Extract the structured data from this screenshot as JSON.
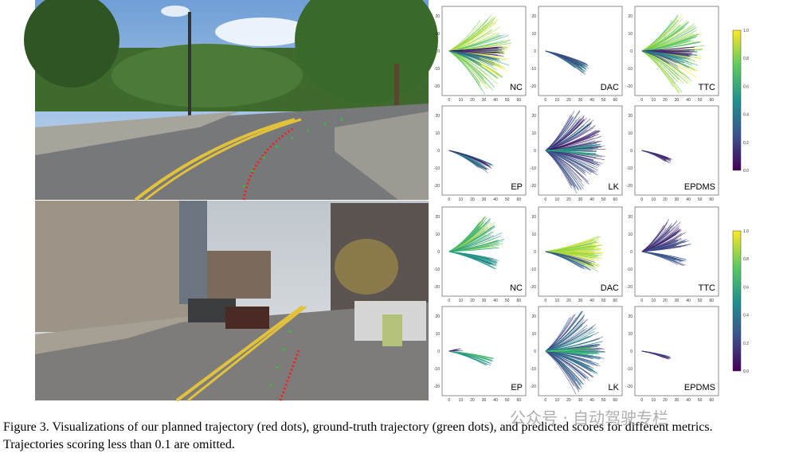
{
  "figure": {
    "panel_groups": [
      {
        "panels": [
          {
            "label": "NC"
          },
          {
            "label": "DAC"
          },
          {
            "label": "TTC"
          },
          {
            "label": "EP"
          },
          {
            "label": "LK"
          },
          {
            "label": "EPDMS"
          }
        ]
      },
      {
        "panels": [
          {
            "label": "NC"
          },
          {
            "label": "DAC"
          },
          {
            "label": "TTC"
          },
          {
            "label": "EP"
          },
          {
            "label": "LK"
          },
          {
            "label": "EPDMS"
          }
        ]
      }
    ],
    "x_ticks": [
      "0",
      "10",
      "20",
      "30",
      "40",
      "50",
      "60"
    ],
    "y_ticks": [
      "20",
      "10",
      "0",
      "-10",
      "-20"
    ],
    "colorbar_ticks": [
      "1.0",
      "0.8",
      "0.6",
      "0.4",
      "0.2",
      "0.0"
    ]
  },
  "caption": {
    "lines": [
      "Figure 3. Visualizations of our planned trajectory (red dots), ground-truth trajectory (green dots), and predicted scores for different metrics.",
      "Trajectories scoring less than 0.1 are omitted."
    ]
  },
  "watermark": "公众号 · 自动驾驶专栏"
}
